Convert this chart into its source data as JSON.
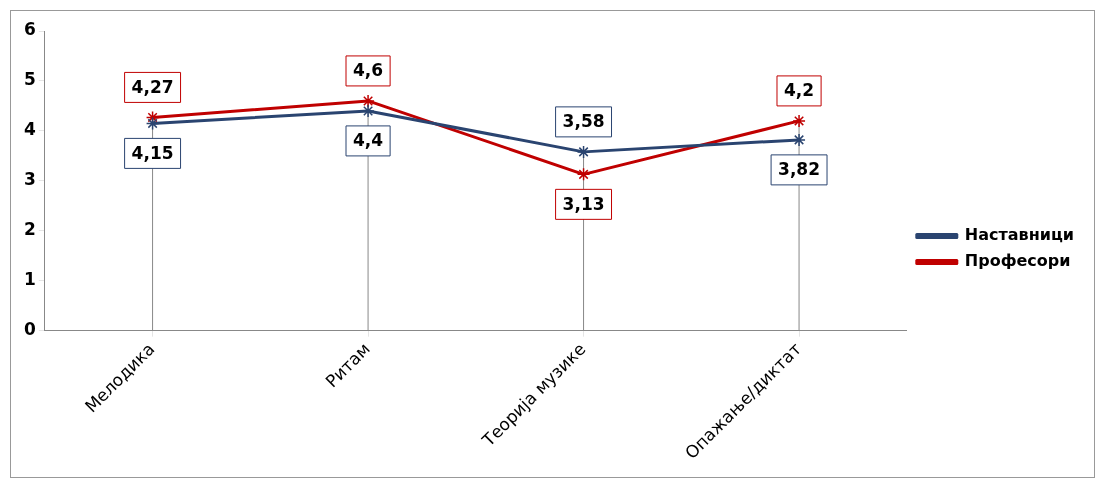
{
  "chart_data": {
    "type": "line",
    "categories": [
      "Мелодика",
      "Ритам",
      "Теорија музике",
      "Опажање/диктат"
    ],
    "series": [
      {
        "name": "Наставници",
        "color": "#2a4470",
        "values": [
          4.15,
          4.4,
          3.58,
          3.82
        ],
        "value_labels": [
          "4,15",
          "4,4",
          "3,58",
          "3,82"
        ]
      },
      {
        "name": "Професори",
        "color": "#c00000",
        "values": [
          4.27,
          4.6,
          3.13,
          4.2
        ],
        "value_labels": [
          "4,27",
          "4,6",
          "3,13",
          "4,2"
        ]
      }
    ],
    "ylim": [
      0,
      6
    ],
    "yticks": [
      0,
      1,
      2,
      3,
      4,
      5,
      6
    ],
    "grid": "x",
    "legend": "right",
    "marker": "cross",
    "line_style": "solid"
  }
}
